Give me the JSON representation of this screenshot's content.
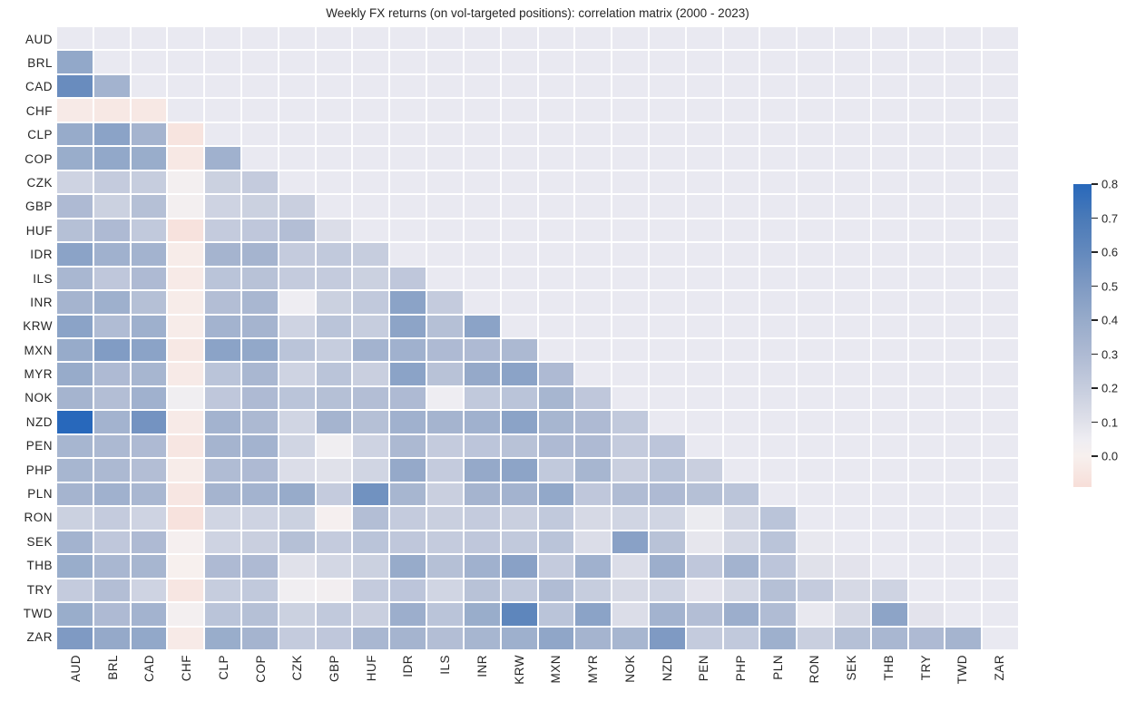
{
  "chart_data": {
    "type": "heatmap",
    "title": "Weekly FX returns (on vol-targeted positions): correlation matrix (2000 - 2023)",
    "labels": [
      "AUD",
      "BRL",
      "CAD",
      "CHF",
      "CLP",
      "COP",
      "CZK",
      "GBP",
      "HUF",
      "IDR",
      "ILS",
      "INR",
      "KRW",
      "MXN",
      "MYR",
      "NOK",
      "NZD",
      "PEN",
      "PHP",
      "PLN",
      "RON",
      "SEK",
      "THB",
      "TRY",
      "TWD",
      "ZAR"
    ],
    "mask": "upper-triangle-including-diagonal",
    "lower_triangle_rows": [
      [],
      [
        0.42
      ],
      [
        0.58,
        0.35
      ],
      [
        -0.03,
        -0.04,
        -0.04
      ],
      [
        0.4,
        0.45,
        0.34,
        -0.06
      ],
      [
        0.39,
        0.42,
        0.39,
        -0.04,
        0.36
      ],
      [
        0.17,
        0.21,
        0.2,
        0.02,
        0.18,
        0.21
      ],
      [
        0.3,
        0.18,
        0.27,
        0.02,
        0.17,
        0.18,
        0.19
      ],
      [
        0.27,
        0.3,
        0.22,
        -0.07,
        0.21,
        0.23,
        0.28,
        0.12
      ],
      [
        0.45,
        0.36,
        0.35,
        -0.02,
        0.34,
        0.34,
        0.21,
        0.22,
        0.2
      ],
      [
        0.32,
        0.23,
        0.3,
        -0.03,
        0.25,
        0.26,
        0.21,
        0.21,
        0.18,
        0.23
      ],
      [
        0.34,
        0.37,
        0.27,
        -0.02,
        0.28,
        0.32,
        0.05,
        0.18,
        0.22,
        0.45,
        0.21
      ],
      [
        0.45,
        0.29,
        0.37,
        -0.02,
        0.35,
        0.34,
        0.17,
        0.25,
        0.2,
        0.44,
        0.27,
        0.45
      ],
      [
        0.4,
        0.49,
        0.45,
        -0.04,
        0.45,
        0.42,
        0.25,
        0.2,
        0.35,
        0.36,
        0.3,
        0.3,
        0.31
      ],
      [
        0.4,
        0.3,
        0.33,
        -0.03,
        0.25,
        0.32,
        0.17,
        0.25,
        0.19,
        0.45,
        0.26,
        0.41,
        0.45,
        0.3
      ],
      [
        0.34,
        0.28,
        0.36,
        0.04,
        0.23,
        0.3,
        0.25,
        0.27,
        0.28,
        0.3,
        0.05,
        0.22,
        0.25,
        0.33,
        0.23
      ],
      [
        0.8,
        0.35,
        0.54,
        -0.03,
        0.35,
        0.31,
        0.16,
        0.34,
        0.27,
        0.36,
        0.34,
        0.36,
        0.45,
        0.33,
        0.3,
        0.22
      ],
      [
        0.33,
        0.31,
        0.3,
        -0.05,
        0.34,
        0.35,
        0.16,
        0.04,
        0.17,
        0.31,
        0.21,
        0.24,
        0.26,
        0.3,
        0.3,
        0.21,
        0.24
      ],
      [
        0.33,
        0.31,
        0.28,
        -0.02,
        0.29,
        0.3,
        0.12,
        0.1,
        0.16,
        0.41,
        0.21,
        0.41,
        0.44,
        0.22,
        0.33,
        0.19,
        0.25,
        0.19
      ],
      [
        0.34,
        0.36,
        0.32,
        -0.05,
        0.34,
        0.35,
        0.4,
        0.21,
        0.55,
        0.33,
        0.19,
        0.34,
        0.35,
        0.42,
        0.23,
        0.29,
        0.3,
        0.27,
        0.25
      ],
      [
        0.18,
        0.21,
        0.17,
        -0.07,
        0.16,
        0.17,
        0.18,
        0.01,
        0.28,
        0.21,
        0.19,
        0.21,
        0.19,
        0.22,
        0.14,
        0.16,
        0.16,
        0.06,
        0.15,
        0.25
      ],
      [
        0.35,
        0.23,
        0.3,
        0.01,
        0.17,
        0.19,
        0.27,
        0.21,
        0.25,
        0.23,
        0.21,
        0.23,
        0.22,
        0.25,
        0.12,
        0.46,
        0.26,
        0.08,
        0.15,
        0.25,
        0.07
      ],
      [
        0.39,
        0.32,
        0.33,
        0.0,
        0.3,
        0.3,
        0.1,
        0.15,
        0.18,
        0.4,
        0.27,
        0.36,
        0.46,
        0.21,
        0.36,
        0.12,
        0.38,
        0.23,
        0.35,
        0.24,
        0.1,
        0.09
      ],
      [
        0.21,
        0.28,
        0.17,
        -0.05,
        0.2,
        0.22,
        0.04,
        0.03,
        0.21,
        0.24,
        0.16,
        0.26,
        0.22,
        0.29,
        0.2,
        0.14,
        0.17,
        0.09,
        0.15,
        0.27,
        0.21,
        0.14,
        0.17
      ],
      [
        0.39,
        0.3,
        0.35,
        0.02,
        0.25,
        0.27,
        0.18,
        0.22,
        0.19,
        0.38,
        0.25,
        0.39,
        0.62,
        0.25,
        0.45,
        0.12,
        0.35,
        0.28,
        0.38,
        0.29,
        0.07,
        0.14,
        0.44,
        0.09
      ],
      [
        0.5,
        0.41,
        0.42,
        -0.03,
        0.39,
        0.34,
        0.21,
        0.23,
        0.32,
        0.34,
        0.28,
        0.33,
        0.37,
        0.43,
        0.34,
        0.33,
        0.5,
        0.21,
        0.22,
        0.37,
        0.19,
        0.27,
        0.32,
        0.3,
        0.34
      ]
    ],
    "colorbar": {
      "tick_values": [
        0.8,
        0.7,
        0.6,
        0.5,
        0.4,
        0.3,
        0.2,
        0.1,
        0.0
      ],
      "tick_labels": [
        "0.8",
        "0.7",
        "0.6",
        "0.5",
        "0.4",
        "0.3",
        "0.2",
        "0.1",
        "0.0"
      ],
      "vmax": 0.8,
      "vmin": -0.09
    },
    "colormap_anchors": [
      [
        -0.09,
        "#f7ded8"
      ],
      [
        0.0,
        "#f7f0ee"
      ],
      [
        0.05,
        "#eeedf2"
      ],
      [
        0.1,
        "#e0e1ea"
      ],
      [
        0.2,
        "#c6cdde"
      ],
      [
        0.3,
        "#aebad3"
      ],
      [
        0.4,
        "#97abca"
      ],
      [
        0.5,
        "#7f9ac3"
      ],
      [
        0.6,
        "#6389bd"
      ],
      [
        0.7,
        "#4a7ab8"
      ],
      [
        0.8,
        "#2868bb"
      ]
    ],
    "masked_cell_color": "#e9e9f1",
    "gridline_color": "#ffffff",
    "legend_position": "right"
  }
}
